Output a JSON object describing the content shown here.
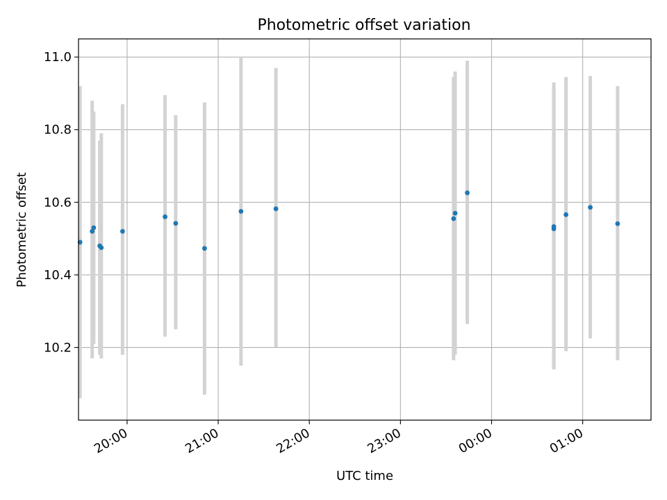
{
  "chart_data": {
    "type": "scatter",
    "title": "Photometric offset variation",
    "xlabel": "UTC time",
    "ylabel": "Photometric offset",
    "x_axis_kind": "time",
    "xlim": [
      "19:28",
      "01:45"
    ],
    "ylim": [
      10.0,
      11.05
    ],
    "grid": true,
    "point_color": "#1f77b4",
    "errorbar_color": "#d3d3d3",
    "x_ticks": [
      "20:00",
      "21:00",
      "22:00",
      "23:00",
      "00:00",
      "01:00"
    ],
    "y_ticks": [
      "10.2",
      "10.4",
      "10.6",
      "10.8",
      "11.0"
    ],
    "points": [
      {
        "x": "19:29",
        "y": 10.49,
        "y_low": 10.06,
        "y_high": 10.92
      },
      {
        "x": "19:37",
        "y": 10.52,
        "y_low": 10.17,
        "y_high": 10.88
      },
      {
        "x": "19:38",
        "y": 10.53,
        "y_low": 10.21,
        "y_high": 10.85
      },
      {
        "x": "19:42",
        "y": 10.48,
        "y_low": 10.18,
        "y_high": 10.77
      },
      {
        "x": "19:43",
        "y": 10.475,
        "y_low": 10.17,
        "y_high": 10.79
      },
      {
        "x": "19:57",
        "y": 10.52,
        "y_low": 10.18,
        "y_high": 10.87
      },
      {
        "x": "20:25",
        "y": 10.56,
        "y_low": 10.23,
        "y_high": 10.895
      },
      {
        "x": "20:32",
        "y": 10.542,
        "y_low": 10.25,
        "y_high": 10.84
      },
      {
        "x": "20:51",
        "y": 10.473,
        "y_low": 10.07,
        "y_high": 10.875
      },
      {
        "x": "21:15",
        "y": 10.575,
        "y_low": 10.15,
        "y_high": 11.0
      },
      {
        "x": "21:38",
        "y": 10.582,
        "y_low": 10.2,
        "y_high": 10.97
      },
      {
        "x": "23:35",
        "y": 10.555,
        "y_low": 10.165,
        "y_high": 10.945
      },
      {
        "x": "23:36",
        "y": 10.57,
        "y_low": 10.18,
        "y_high": 10.96
      },
      {
        "x": "23:44",
        "y": 10.626,
        "y_low": 10.265,
        "y_high": 10.99
      },
      {
        "x": "00:41",
        "y": 10.527,
        "y_low": 10.14,
        "y_high": 10.915
      },
      {
        "x": "00:41",
        "y": 10.533,
        "y_low": 10.14,
        "y_high": 10.93
      },
      {
        "x": "00:49",
        "y": 10.566,
        "y_low": 10.19,
        "y_high": 10.945
      },
      {
        "x": "01:05",
        "y": 10.586,
        "y_low": 10.225,
        "y_high": 10.948
      },
      {
        "x": "01:23",
        "y": 10.541,
        "y_low": 10.165,
        "y_high": 10.92
      }
    ]
  }
}
